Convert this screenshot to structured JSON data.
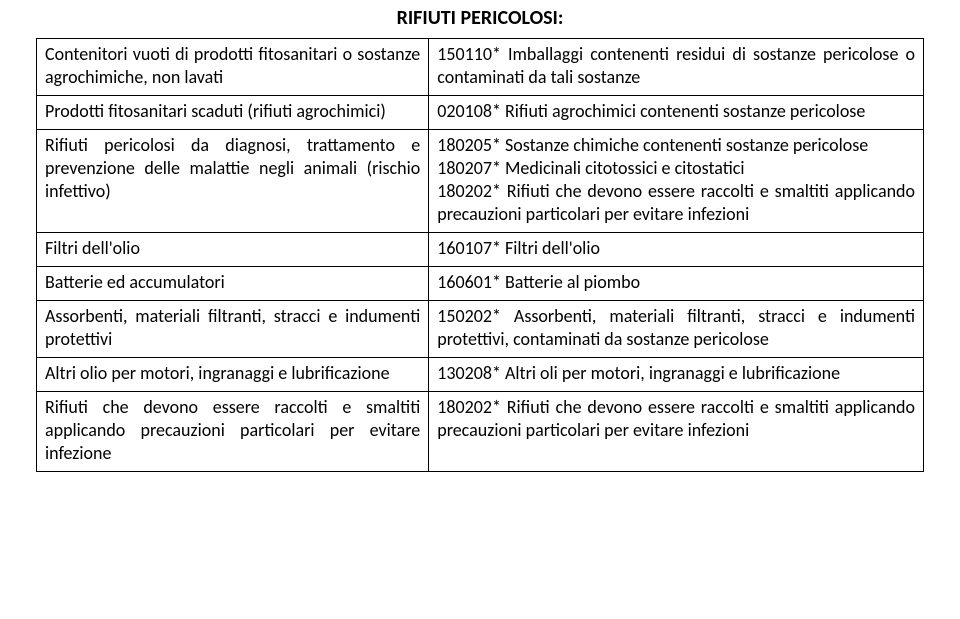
{
  "title": "RIFIUTI PERICOLOSI:",
  "rows": [
    {
      "left": "Contenitori vuoti di prodotti fitosanitari o sostanze agrochimiche, non lavati",
      "right": "150110* Imballaggi contenenti residui di sostanze pericolose o contaminati da tali sostanze"
    },
    {
      "left": "Prodotti fitosanitari scaduti (rifiuti agrochimici)",
      "right": "020108* Rifiuti agrochimici contenenti sostanze pericolose"
    },
    {
      "left": "Rifiuti pericolosi da diagnosi, trattamento e prevenzione delle malattie negli animali (rischio infettivo)",
      "right": "180205* Sostanze chimiche contenenti sostanze pericolose\n180207* Medicinali citotossici e citostatici\n180202* Rifiuti che devono essere raccolti e smaltiti applicando precauzioni particolari per evitare infezioni"
    },
    {
      "left": "Filtri dell'olio",
      "right": "160107* Filtri dell'olio"
    },
    {
      "left": "Batterie ed accumulatori",
      "right": "160601* Batterie al piombo"
    },
    {
      "left": "Assorbenti, materiali filtranti, stracci e indumenti protettivi",
      "right": "150202* Assorbenti, materiali filtranti, stracci e indumenti protettivi, contaminati da sostanze pericolose"
    },
    {
      "left": "Altri olio per motori, ingranaggi e lubrificazione",
      "right": "130208* Altri oli per motori, ingranaggi e lubrificazione"
    },
    {
      "left": "Rifiuti che devono essere raccolti e smaltiti applicando precauzioni particolari per evitare infezione",
      "right": "180202* Rifiuti  che devono essere raccolti e smaltiti applicando precauzioni particolari per evitare infezioni"
    }
  ]
}
